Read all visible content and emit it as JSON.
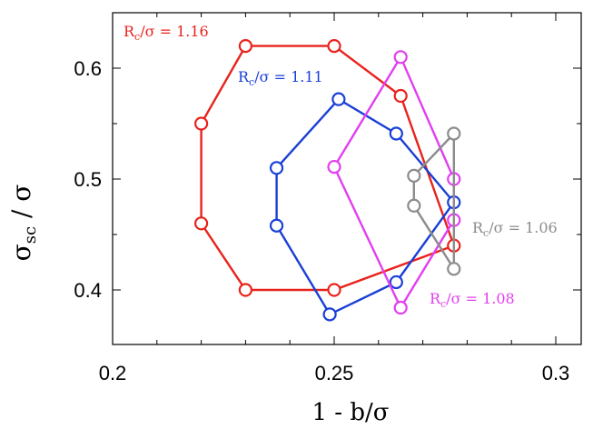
{
  "chart_data": {
    "type": "scatter",
    "xlabel": "1 - b/σ",
    "ylabel_main": "σ",
    "ylabel_sub": "sc",
    "ylabel_tail": " / σ",
    "xlim": [
      0.2,
      0.31
    ],
    "ylim": [
      0.345,
      0.65
    ],
    "x_ticks": [
      0.2,
      0.25,
      0.3
    ],
    "x_tick_labels": [
      "0.2",
      "0.25",
      "0.3"
    ],
    "y_ticks": [
      0.4,
      0.5,
      0.6
    ],
    "y_tick_labels": [
      "0.4",
      "0.5",
      "0.6"
    ],
    "grid": false,
    "series": [
      {
        "name": "Rc/σ = 1.16",
        "label_main": "R",
        "label_sub": "c",
        "label_tail": "/σ = 1.16",
        "color": "#e8231c",
        "points": [
          [
            0.23,
            0.62
          ],
          [
            0.25,
            0.62
          ],
          [
            0.265,
            0.575
          ],
          [
            0.277,
            0.44
          ],
          [
            0.25,
            0.4
          ],
          [
            0.23,
            0.4
          ],
          [
            0.22,
            0.46
          ],
          [
            0.22,
            0.55
          ],
          [
            0.23,
            0.62
          ]
        ]
      },
      {
        "name": "Rc/σ = 1.11",
        "label_main": "R",
        "label_sub": "c",
        "label_tail": "/σ = 1.11",
        "color": "#1a3fd6",
        "points": [
          [
            0.251,
            0.572
          ],
          [
            0.264,
            0.541
          ],
          [
            0.277,
            0.479
          ],
          [
            0.264,
            0.407
          ],
          [
            0.249,
            0.378
          ],
          [
            0.237,
            0.458
          ],
          [
            0.237,
            0.51
          ],
          [
            0.251,
            0.572
          ]
        ]
      },
      {
        "name": "Rc/σ = 1.08",
        "label_main": "R",
        "label_sub": "c",
        "label_tail": "/σ = 1.08",
        "color": "#e23ef0",
        "points": [
          [
            0.25,
            0.511
          ],
          [
            0.265,
            0.61
          ],
          [
            0.277,
            0.5
          ],
          [
            0.277,
            0.463
          ],
          [
            0.265,
            0.384
          ],
          [
            0.25,
            0.511
          ]
        ]
      },
      {
        "name": "Rc/σ = 1.06",
        "label_main": "R",
        "label_sub": "c",
        "label_tail": "/σ = 1.06",
        "color": "#8c8c8c",
        "points": [
          [
            0.277,
            0.541
          ],
          [
            0.268,
            0.503
          ],
          [
            0.268,
            0.476
          ],
          [
            0.277,
            0.419
          ],
          [
            0.277,
            0.541
          ]
        ]
      }
    ]
  }
}
